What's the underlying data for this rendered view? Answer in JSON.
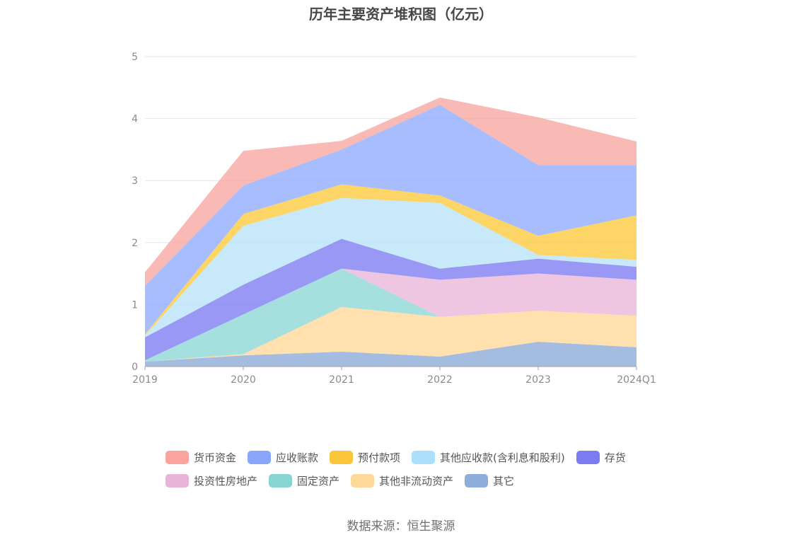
{
  "chart_data": {
    "type": "area",
    "stacked": true,
    "title": "历年主要资产堆积图（亿元）",
    "categories": [
      "2019",
      "2020",
      "2021",
      "2022",
      "2023",
      "2024Q1"
    ],
    "ylim": [
      0,
      5
    ],
    "yticks": [
      "0",
      "1",
      "2",
      "3",
      "4",
      "5"
    ],
    "grid": true,
    "legend_position": "bottom",
    "series": [
      {
        "name": "其它",
        "color": "#8eabd9",
        "values": [
          0.08,
          0.18,
          0.24,
          0.16,
          0.4,
          0.31
        ]
      },
      {
        "name": "其他非流动资产",
        "color": "#ffd89a",
        "values": [
          0.0,
          0.02,
          0.72,
          0.64,
          0.5,
          0.51
        ]
      },
      {
        "name": "固定资产",
        "color": "#8ed8d6",
        "values": [
          0.02,
          0.64,
          0.62,
          0.0,
          0.0,
          0.0
        ]
      },
      {
        "name": "投资性房地产",
        "color": "#eab8db",
        "values": [
          0.0,
          0.0,
          0.0,
          0.6,
          0.6,
          0.58
        ]
      },
      {
        "name": "存货",
        "color": "#7f7ff2",
        "values": [
          0.37,
          0.48,
          0.48,
          0.18,
          0.24,
          0.21
        ]
      },
      {
        "name": "其他应收款(含利息和股利)",
        "color": "#b9e3f8",
        "values": [
          0.03,
          0.95,
          0.66,
          1.06,
          0.06,
          0.11
        ]
      },
      {
        "name": "预付款项",
        "color": "#fdc940",
        "values": [
          0.02,
          0.19,
          0.22,
          0.12,
          0.31,
          0.72
        ]
      },
      {
        "name": "应收账款",
        "color": "#92acfd",
        "values": [
          0.78,
          0.46,
          0.56,
          1.46,
          1.14,
          0.81
        ]
      },
      {
        "name": "货币资金",
        "color": "#f7a8a3",
        "values": [
          0.22,
          0.56,
          0.14,
          0.12,
          0.77,
          0.38
        ]
      }
    ],
    "legend_order": [
      "货币资金",
      "应收账款",
      "预付款项",
      "其他应收款(含利息和股利)",
      "存货",
      "投资性房地产",
      "固定资产",
      "其他非流动资产",
      "其它"
    ],
    "legend_colors": {
      "货币资金": "#f9a59e",
      "应收账款": "#8aa6fb",
      "预付款项": "#fbc63a",
      "其他应收款(含利息和股利)": "#abdffa",
      "存货": "#7c7cf0",
      "投资性房地产": "#e8b4d8",
      "固定资产": "#86d5d3",
      "其他非流动资产": "#fdd898",
      "其它": "#8daedb"
    }
  },
  "source": "数据来源：恒生聚源"
}
